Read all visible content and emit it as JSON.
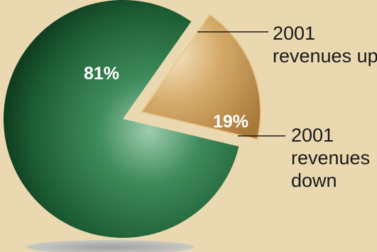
{
  "chart_data": {
    "type": "pie",
    "categories": [
      "2001 revenues up",
      "2001 revenues down"
    ],
    "values": [
      81,
      19
    ],
    "data_labels": [
      "81%",
      "19%"
    ],
    "callouts": [
      [
        "2001",
        "revenues up"
      ],
      [
        "2001",
        "revenues",
        "down"
      ]
    ],
    "colors": [
      "#1f6a3c",
      "#c89a55"
    ],
    "exploded_slice": 1,
    "title": "",
    "legend": "none"
  }
}
